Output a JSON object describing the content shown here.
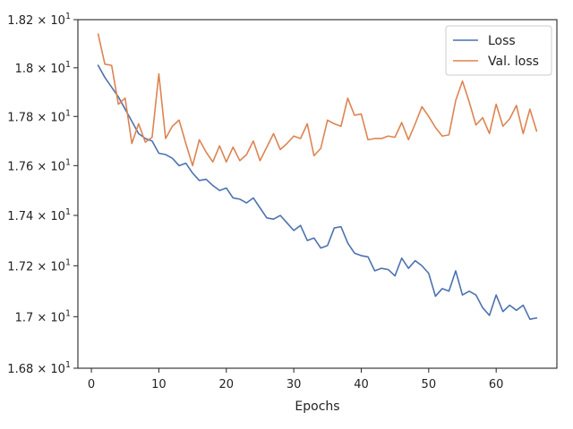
{
  "chart_data": {
    "type": "line",
    "title": "",
    "xlabel": "Epochs",
    "ylabel": "",
    "xlim": [
      -2,
      69
    ],
    "ylim": [
      16.8,
      18.2
    ],
    "y_scale": "log",
    "grid": false,
    "legend_placement": "top-right",
    "x_ticks": [
      0,
      10,
      20,
      30,
      40,
      50,
      60
    ],
    "x_tick_labels": [
      "0",
      "10",
      "20",
      "30",
      "40",
      "50",
      "60"
    ],
    "y_ticks": [
      16.8,
      17.0,
      17.2,
      17.4,
      17.6,
      17.8,
      18.0,
      18.2
    ],
    "y_tick_labels": [
      {
        "base": "1.68 × 10",
        "exp": "1"
      },
      {
        "base": "1.7 × 10",
        "exp": "1"
      },
      {
        "base": "1.72 × 10",
        "exp": "1"
      },
      {
        "base": "1.74 × 10",
        "exp": "1"
      },
      {
        "base": "1.76 × 10",
        "exp": "1"
      },
      {
        "base": "1.78 × 10",
        "exp": "1"
      },
      {
        "base": "1.8 × 10",
        "exp": "1"
      },
      {
        "base": "1.82 × 10",
        "exp": "1"
      }
    ],
    "x": [
      1,
      2,
      3,
      4,
      5,
      6,
      7,
      8,
      9,
      10,
      11,
      12,
      13,
      14,
      15,
      16,
      17,
      18,
      19,
      20,
      21,
      22,
      23,
      24,
      25,
      26,
      27,
      28,
      29,
      30,
      31,
      32,
      33,
      34,
      35,
      36,
      37,
      38,
      39,
      40,
      41,
      42,
      43,
      44,
      45,
      46,
      47,
      48,
      49,
      50,
      51,
      52,
      53,
      54,
      55,
      56,
      57,
      58,
      59,
      60,
      61,
      62,
      63,
      64,
      65,
      66
    ],
    "series": [
      {
        "name": "Loss",
        "color": "#4c72b0",
        "values": [
          18.01,
          17.96,
          17.92,
          17.88,
          17.83,
          17.78,
          17.73,
          17.71,
          17.7,
          17.65,
          17.645,
          17.63,
          17.6,
          17.61,
          17.57,
          17.54,
          17.545,
          17.52,
          17.5,
          17.51,
          17.47,
          17.465,
          17.45,
          17.47,
          17.43,
          17.39,
          17.385,
          17.4,
          17.37,
          17.34,
          17.36,
          17.3,
          17.31,
          17.27,
          17.28,
          17.35,
          17.355,
          17.29,
          17.25,
          17.24,
          17.235,
          17.18,
          17.19,
          17.185,
          17.16,
          17.23,
          17.19,
          17.22,
          17.2,
          17.17,
          17.08,
          17.11,
          17.1,
          17.18,
          17.085,
          17.1,
          17.085,
          17.035,
          17.005,
          17.085,
          17.02,
          17.045,
          17.025,
          17.045,
          16.99,
          16.995
        ]
      },
      {
        "name": "Val. loss",
        "color": "#dd8452",
        "values": [
          18.14,
          18.015,
          18.01,
          17.85,
          17.875,
          17.69,
          17.77,
          17.695,
          17.715,
          17.975,
          17.71,
          17.76,
          17.785,
          17.69,
          17.6,
          17.705,
          17.655,
          17.615,
          17.68,
          17.615,
          17.675,
          17.62,
          17.645,
          17.7,
          17.62,
          17.675,
          17.73,
          17.665,
          17.69,
          17.72,
          17.71,
          17.77,
          17.64,
          17.67,
          17.785,
          17.77,
          17.76,
          17.875,
          17.805,
          17.81,
          17.705,
          17.71,
          17.71,
          17.72,
          17.715,
          17.775,
          17.705,
          17.77,
          17.84,
          17.8,
          17.755,
          17.72,
          17.725,
          17.865,
          17.945,
          17.86,
          17.765,
          17.795,
          17.73,
          17.85,
          17.76,
          17.79,
          17.845,
          17.73,
          17.83,
          17.74
        ]
      }
    ]
  }
}
